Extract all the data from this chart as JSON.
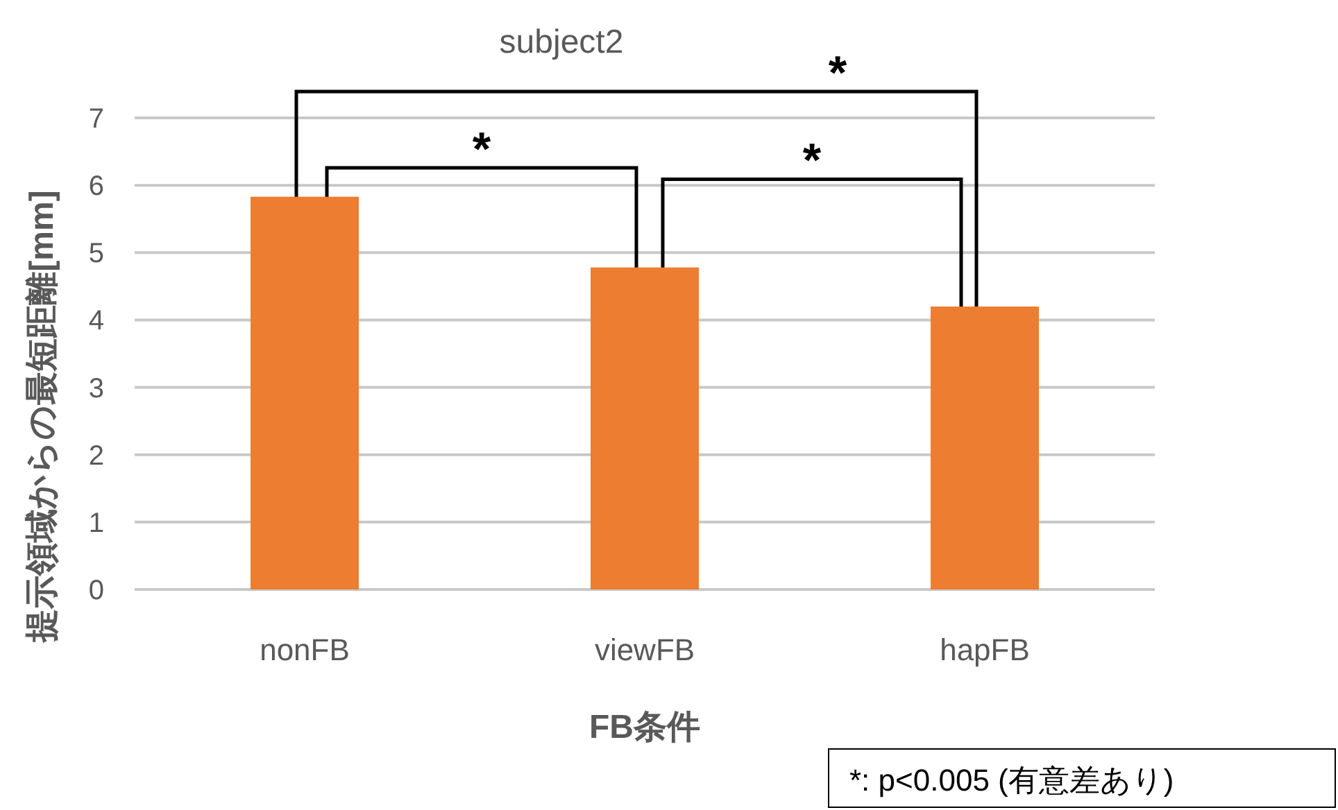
{
  "chart_data": {
    "type": "bar",
    "title": "subject2",
    "xlabel": "FB条件",
    "ylabel": "提示領域からの最短距離[mm]",
    "categories": [
      "nonFB",
      "viewFB",
      "hapFB"
    ],
    "series": [
      {
        "color": "#ed7d31",
        "values": [
          5.83,
          4.78,
          4.2
        ]
      }
    ],
    "ylim": [
      0,
      7
    ],
    "yticks": [
      0,
      1,
      2,
      3,
      4,
      5,
      6,
      7
    ],
    "grid": "y",
    "annotations": [
      "*",
      "*",
      "*",
      "*: p<0.005 (有意差あり)"
    ]
  }
}
